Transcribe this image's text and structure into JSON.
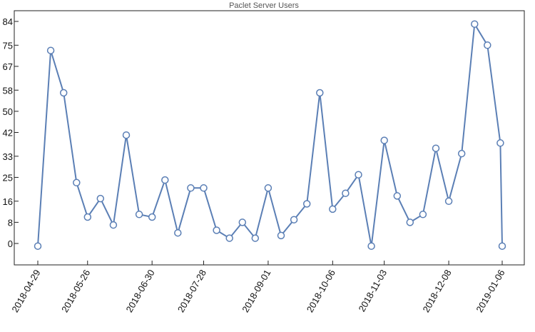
{
  "chart_data": {
    "type": "line",
    "title": "Paclet Server Users",
    "xlabel": "",
    "ylabel": "",
    "x_tick_labels": [
      "2018-04-29",
      "2018-05-26",
      "2018-06-30",
      "2018-07-28",
      "2018-09-01",
      "2018-10-06",
      "2018-11-03",
      "2018-12-08",
      "2019-01-06"
    ],
    "y_tick_labels": [
      "0",
      "8",
      "16",
      "25",
      "33",
      "42",
      "50",
      "58",
      "67",
      "75",
      "84"
    ],
    "ylim": [
      -8,
      87
    ],
    "xlim": [
      "2018-04-23",
      "2019-01-12"
    ],
    "grid": false,
    "line_color": "#5b7fb5",
    "marker": "open-circle",
    "series": [
      {
        "x": [
          "2018-04-29",
          "2018-05-06",
          "2018-05-13",
          "2018-05-20",
          "2018-05-26",
          "2018-06-02",
          "2018-06-09",
          "2018-06-16",
          "2018-06-23",
          "2018-06-30",
          "2018-07-07",
          "2018-07-14",
          "2018-07-21",
          "2018-07-28",
          "2018-08-04",
          "2018-08-11",
          "2018-08-18",
          "2018-08-25",
          "2018-09-01",
          "2018-09-08",
          "2018-09-15",
          "2018-09-22",
          "2018-09-29",
          "2018-10-06",
          "2018-10-13",
          "2018-10-20",
          "2018-10-27",
          "2018-11-03",
          "2018-11-10",
          "2018-11-17",
          "2018-11-24",
          "2018-12-01",
          "2018-12-08",
          "2018-12-15",
          "2018-12-22",
          "2018-12-29",
          "2019-01-05",
          "2019-01-06"
        ],
        "values": [
          -1,
          73,
          57,
          23,
          10,
          17,
          7,
          41,
          11,
          10,
          24,
          4,
          21,
          21,
          5,
          2,
          8,
          2,
          21,
          3,
          9,
          15,
          57,
          13,
          19,
          26,
          -1,
          39,
          18,
          8,
          11,
          36,
          16,
          34,
          83,
          75,
          38,
          -1
        ]
      }
    ]
  }
}
